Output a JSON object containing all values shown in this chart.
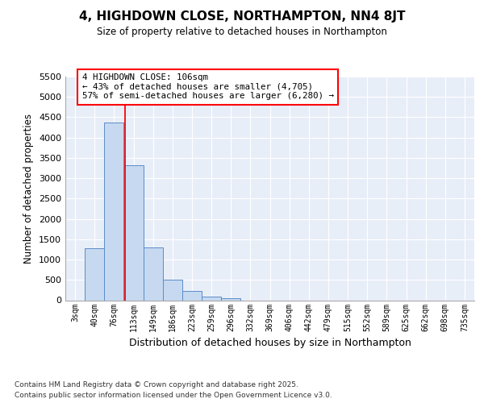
{
  "title": "4, HIGHDOWN CLOSE, NORTHAMPTON, NN4 8JT",
  "subtitle": "Size of property relative to detached houses in Northampton",
  "xlabel": "Distribution of detached houses by size in Northampton",
  "ylabel": "Number of detached properties",
  "bar_color": "#c6d9f0",
  "bar_edge_color": "#5b8cc8",
  "background_color": "#e8eef8",
  "grid_color": "#ffffff",
  "categories": [
    "3sqm",
    "40sqm",
    "76sqm",
    "113sqm",
    "149sqm",
    "186sqm",
    "223sqm",
    "259sqm",
    "296sqm",
    "332sqm",
    "369sqm",
    "406sqm",
    "442sqm",
    "479sqm",
    "515sqm",
    "552sqm",
    "589sqm",
    "625sqm",
    "662sqm",
    "698sqm",
    "735sqm"
  ],
  "values": [
    0,
    1270,
    4380,
    3310,
    1290,
    500,
    225,
    85,
    55,
    0,
    0,
    0,
    0,
    0,
    0,
    0,
    0,
    0,
    0,
    0,
    0
  ],
  "ylim": [
    0,
    5500
  ],
  "yticks": [
    0,
    500,
    1000,
    1500,
    2000,
    2500,
    3000,
    3500,
    4000,
    4500,
    5000,
    5500
  ],
  "vline_x": 2.57,
  "annotation_text": "4 HIGHDOWN CLOSE: 106sqm\n← 43% of detached houses are smaller (4,705)\n57% of semi-detached houses are larger (6,280) →",
  "footer_line1": "Contains HM Land Registry data © Crown copyright and database right 2025.",
  "footer_line2": "Contains public sector information licensed under the Open Government Licence v3.0."
}
